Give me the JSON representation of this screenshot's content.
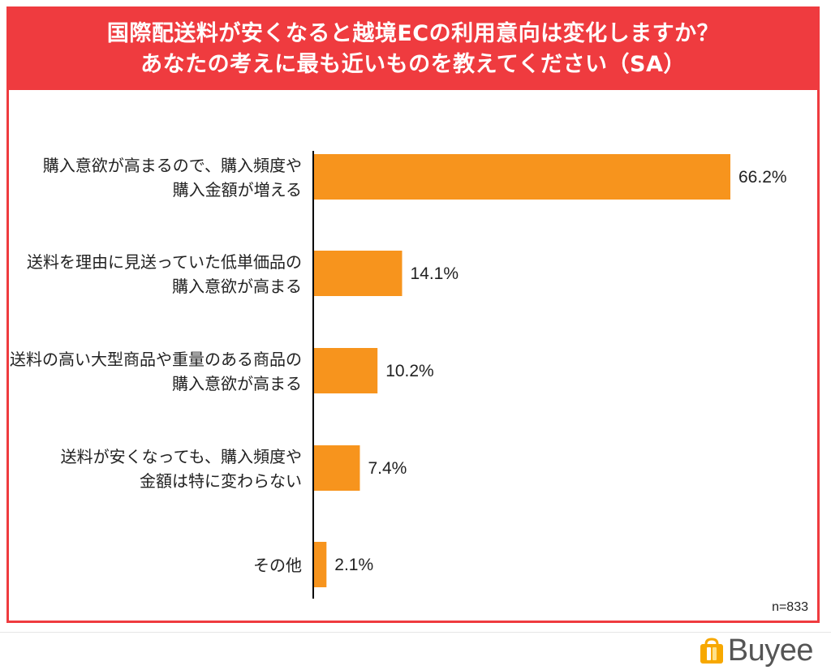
{
  "header": {
    "title_line1": "国際配送料が安くなると越境ECの利用意向は変化しますか？",
    "title_line2": "あなたの考えに最も近いものを教えてください（SA）"
  },
  "colors": {
    "header_bg": "#ef3b3f",
    "bar": "#f7941d",
    "axis": "#000000",
    "text": "#222222"
  },
  "chart_data": {
    "type": "bar",
    "orientation": "horizontal",
    "unit": "%",
    "xlim": [
      0,
      70
    ],
    "grid": false,
    "categories": [
      [
        "購入意欲が高まるので、購入頻度や",
        "購入金額が増える"
      ],
      [
        "送料を理由に見送っていた低単価品の",
        "購入意欲が高まる"
      ],
      [
        "送料の高い大型商品や重量のある商品の",
        "購入意欲が高まる"
      ],
      [
        "送料が安くなっても、購入頻度や",
        "金額は特に変わらない"
      ],
      [
        "その他"
      ]
    ],
    "values": [
      66.2,
      14.1,
      10.2,
      7.4,
      2.1
    ],
    "value_labels": [
      "66.2%",
      "14.1%",
      "10.2%",
      "7.4%",
      "2.1%"
    ],
    "note": "n=833"
  },
  "logo": {
    "text": "Buyee",
    "icon": "buyee-bag-icon"
  }
}
